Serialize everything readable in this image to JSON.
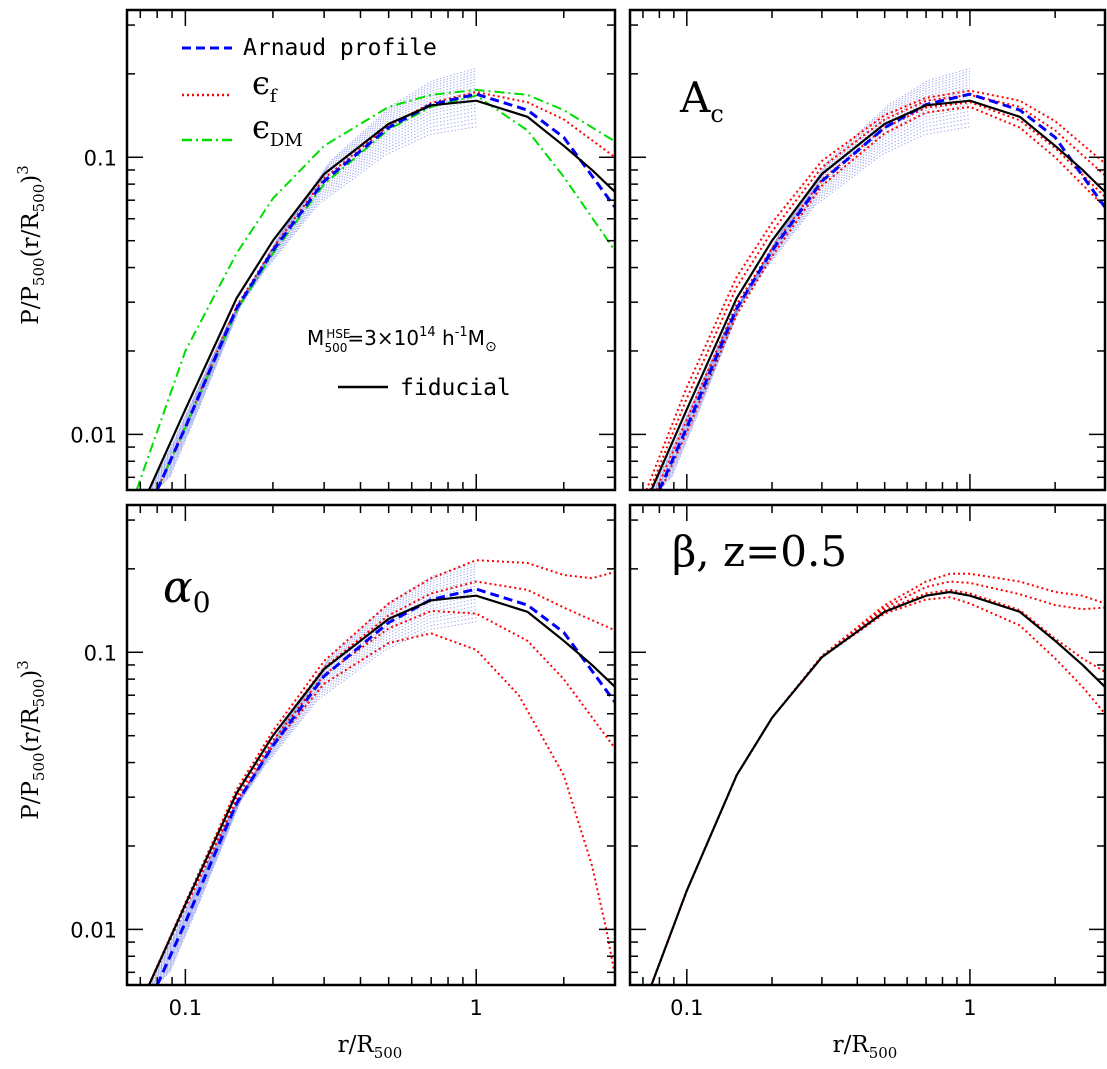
{
  "chart_data": [
    {
      "panel": "top-left",
      "type": "line",
      "xscale": "log",
      "yscale": "log",
      "xlim": [
        0.063,
        3.0
      ],
      "ylim": [
        0.0063,
        0.34
      ],
      "xticklabels": [],
      "yticklabels": [
        "0.1",
        "0.01"
      ],
      "xlabel": "",
      "ylabel": "P/P500(r/R500)3",
      "annotation": "M500HSE=3×1014 h-1M⊙",
      "legend": [
        {
          "label": "Arnaud profile",
          "color": "#0000ff",
          "style": "dashed"
        },
        {
          "label": "εf",
          "color": "#ff0000",
          "style": "dotted"
        },
        {
          "label": "εDM",
          "color": "#00dd00",
          "style": "dashdot"
        },
        {
          "label": "fiducial",
          "color": "#000000",
          "style": "solid"
        }
      ],
      "series": [
        {
          "role": "arnaud",
          "x": [
            0.08,
            0.1,
            0.15,
            0.2,
            0.3,
            0.5,
            0.7,
            1.0,
            1.5,
            2.0,
            3.0
          ],
          "y": [
            0.0063,
            0.0106,
            0.0285,
            0.046,
            0.082,
            0.128,
            0.155,
            0.169,
            0.148,
            0.118,
            0.066
          ]
        },
        {
          "role": "fiducial",
          "x": [
            0.075,
            0.1,
            0.15,
            0.2,
            0.3,
            0.5,
            0.7,
            1.0,
            1.5,
            2.0,
            2.5,
            3.0
          ],
          "y": [
            0.0063,
            0.0123,
            0.031,
            0.05,
            0.087,
            0.132,
            0.154,
            0.16,
            0.14,
            0.11,
            0.09,
            0.075
          ]
        },
        {
          "role": "varied-red",
          "x": [
            0.08,
            0.1,
            0.15,
            0.2,
            0.3,
            0.5,
            0.7,
            1.0,
            1.5,
            2.0,
            3.0
          ],
          "y": [
            0.0063,
            0.0107,
            0.029,
            0.047,
            0.084,
            0.13,
            0.157,
            0.172,
            0.158,
            0.137,
            0.1
          ]
        },
        {
          "role": "varied-green",
          "x": [
            0.068,
            0.1,
            0.15,
            0.2,
            0.3,
            0.5,
            0.7,
            1.0,
            1.5,
            2.0,
            3.0
          ],
          "y": [
            0.0063,
            0.02,
            0.045,
            0.071,
            0.11,
            0.152,
            0.168,
            0.175,
            0.168,
            0.148,
            0.114
          ]
        },
        {
          "role": "varied-green",
          "x": [
            0.08,
            0.1,
            0.15,
            0.2,
            0.3,
            0.5,
            0.7,
            1.0,
            1.5,
            2.0,
            3.0
          ],
          "y": [
            0.0063,
            0.0106,
            0.028,
            0.045,
            0.08,
            0.126,
            0.152,
            0.167,
            0.125,
            0.085,
            0.046
          ]
        }
      ]
    },
    {
      "panel": "top-right",
      "type": "line",
      "xscale": "log",
      "yscale": "log",
      "xlim": [
        0.063,
        3.0
      ],
      "ylim": [
        0.0063,
        0.34
      ],
      "xticklabels": [],
      "yticklabels": [],
      "annotation": "Ac",
      "series": [
        {
          "role": "arnaud",
          "x": [
            0.08,
            0.1,
            0.15,
            0.2,
            0.3,
            0.5,
            0.7,
            1.0,
            1.5,
            2.0,
            3.0
          ],
          "y": [
            0.0063,
            0.0106,
            0.0285,
            0.046,
            0.082,
            0.128,
            0.155,
            0.169,
            0.148,
            0.118,
            0.066
          ]
        },
        {
          "role": "fiducial",
          "x": [
            0.075,
            0.1,
            0.15,
            0.2,
            0.3,
            0.5,
            0.7,
            1.0,
            1.5,
            2.0,
            2.5,
            3.0
          ],
          "y": [
            0.0063,
            0.0123,
            0.031,
            0.05,
            0.087,
            0.132,
            0.154,
            0.16,
            0.14,
            0.11,
            0.09,
            0.075
          ]
        },
        {
          "role": "varied-red",
          "x": [
            0.072,
            0.1,
            0.15,
            0.2,
            0.3,
            0.5,
            0.7,
            1.0,
            1.5,
            2.0,
            3.0
          ],
          "y": [
            0.0063,
            0.0148,
            0.037,
            0.058,
            0.097,
            0.142,
            0.164,
            0.174,
            0.16,
            0.135,
            0.095
          ]
        },
        {
          "role": "varied-red",
          "x": [
            0.078,
            0.1,
            0.15,
            0.2,
            0.3,
            0.5,
            0.7,
            1.0,
            1.5,
            2.0,
            3.0
          ],
          "y": [
            0.0063,
            0.0113,
            0.0295,
            0.047,
            0.083,
            0.128,
            0.151,
            0.158,
            0.136,
            0.108,
            0.072
          ]
        },
        {
          "role": "varied-red",
          "x": [
            0.081,
            0.1,
            0.15,
            0.2,
            0.3,
            0.5,
            0.7,
            1.0,
            1.5,
            2.0,
            3.0
          ],
          "y": [
            0.0063,
            0.0102,
            0.027,
            0.044,
            0.079,
            0.122,
            0.145,
            0.152,
            0.128,
            0.1,
            0.066
          ]
        },
        {
          "role": "varied-red",
          "x": [
            0.074,
            0.1,
            0.15,
            0.2,
            0.3,
            0.5,
            0.7,
            1.0,
            1.5,
            2.0,
            3.0
          ],
          "y": [
            0.0063,
            0.0135,
            0.034,
            0.054,
            0.092,
            0.137,
            0.16,
            0.168,
            0.152,
            0.125,
            0.086
          ]
        }
      ]
    },
    {
      "panel": "bottom-left",
      "type": "line",
      "xscale": "log",
      "yscale": "log",
      "xlim": [
        0.063,
        3.0
      ],
      "ylim": [
        0.0063,
        0.34
      ],
      "xticklabels": [
        "0.1",
        "1"
      ],
      "yticklabels": [
        "0.1",
        "0.01"
      ],
      "xlabel": "r/R500",
      "ylabel": "P/P500(r/R500)3",
      "annotation": "α0",
      "series": [
        {
          "role": "arnaud",
          "x": [
            0.08,
            0.1,
            0.15,
            0.2,
            0.3,
            0.5,
            0.7,
            1.0,
            1.5,
            2.0,
            3.0
          ],
          "y": [
            0.0063,
            0.0106,
            0.0285,
            0.046,
            0.082,
            0.128,
            0.155,
            0.169,
            0.148,
            0.118,
            0.066
          ]
        },
        {
          "role": "fiducial",
          "x": [
            0.075,
            0.1,
            0.15,
            0.2,
            0.3,
            0.5,
            0.7,
            1.0,
            1.5,
            2.0,
            2.5,
            3.0
          ],
          "y": [
            0.0063,
            0.0123,
            0.031,
            0.05,
            0.087,
            0.132,
            0.154,
            0.16,
            0.14,
            0.11,
            0.09,
            0.075
          ]
        },
        {
          "role": "varied-red",
          "x": [
            0.075,
            0.1,
            0.15,
            0.2,
            0.3,
            0.5,
            0.7,
            1.0,
            1.5,
            2.0,
            2.5,
            3.0
          ],
          "y": [
            0.0063,
            0.0125,
            0.032,
            0.052,
            0.093,
            0.15,
            0.185,
            0.215,
            0.21,
            0.19,
            0.185,
            0.195
          ]
        },
        {
          "role": "varied-red",
          "x": [
            0.075,
            0.1,
            0.15,
            0.2,
            0.3,
            0.5,
            0.7,
            1.0,
            1.5,
            2.0,
            3.0
          ],
          "y": [
            0.0063,
            0.0123,
            0.031,
            0.05,
            0.088,
            0.136,
            0.163,
            0.18,
            0.168,
            0.145,
            0.12
          ]
        },
        {
          "role": "varied-red",
          "x": [
            0.075,
            0.1,
            0.15,
            0.2,
            0.3,
            0.5,
            0.7,
            1.0,
            1.5,
            2.0,
            3.0
          ],
          "y": [
            0.0063,
            0.0121,
            0.03,
            0.048,
            0.083,
            0.122,
            0.141,
            0.138,
            0.11,
            0.08,
            0.045
          ]
        },
        {
          "role": "varied-red",
          "x": [
            0.075,
            0.1,
            0.15,
            0.2,
            0.3,
            0.5,
            0.7,
            1.0,
            1.4,
            2.0,
            2.5,
            2.8,
            3.0
          ],
          "y": [
            0.0063,
            0.012,
            0.029,
            0.046,
            0.077,
            0.108,
            0.117,
            0.102,
            0.07,
            0.036,
            0.017,
            0.01,
            0.0068
          ]
        }
      ]
    },
    {
      "panel": "bottom-right",
      "type": "line",
      "xscale": "log",
      "yscale": "log",
      "xlim": [
        0.063,
        3.0
      ],
      "ylim": [
        0.0063,
        0.34
      ],
      "xticklabels": [
        "0.1",
        "1"
      ],
      "yticklabels": [],
      "xlabel": "r/R500",
      "annotation": "β, z=0.5",
      "series": [
        {
          "role": "fiducial",
          "x": [
            0.075,
            0.1,
            0.15,
            0.2,
            0.3,
            0.5,
            0.7,
            0.85,
            1.0,
            1.5,
            2.0,
            2.5,
            3.0
          ],
          "y": [
            0.0063,
            0.0138,
            0.036,
            0.058,
            0.096,
            0.14,
            0.16,
            0.165,
            0.16,
            0.14,
            0.11,
            0.09,
            0.075
          ]
        },
        {
          "role": "varied-red",
          "x": [
            0.075,
            0.1,
            0.15,
            0.2,
            0.3,
            0.5,
            0.7,
            0.85,
            1.0,
            1.5,
            2.0,
            2.5,
            3.0
          ],
          "y": [
            0.0063,
            0.0138,
            0.036,
            0.058,
            0.097,
            0.145,
            0.172,
            0.18,
            0.178,
            0.162,
            0.148,
            0.143,
            0.145
          ]
        },
        {
          "role": "varied-red",
          "x": [
            0.075,
            0.1,
            0.15,
            0.2,
            0.3,
            0.5,
            0.7,
            0.85,
            1.0,
            1.5,
            2.0,
            2.5,
            3.0
          ],
          "y": [
            0.0063,
            0.0138,
            0.036,
            0.058,
            0.096,
            0.142,
            0.163,
            0.168,
            0.163,
            0.142,
            0.112,
            0.095,
            0.085
          ]
        },
        {
          "role": "varied-red",
          "x": [
            0.075,
            0.1,
            0.15,
            0.2,
            0.3,
            0.5,
            0.7,
            0.85,
            1.0,
            1.5,
            2.0,
            2.5,
            3.0
          ],
          "y": [
            0.0063,
            0.0138,
            0.036,
            0.058,
            0.096,
            0.138,
            0.155,
            0.158,
            0.15,
            0.125,
            0.095,
            0.075,
            0.06
          ]
        },
        {
          "role": "varied-red",
          "x": [
            0.075,
            0.1,
            0.15,
            0.2,
            0.3,
            0.5,
            0.7,
            0.85,
            1.0,
            1.5,
            2.0,
            2.5,
            3.0
          ],
          "y": [
            0.0063,
            0.0138,
            0.036,
            0.058,
            0.097,
            0.148,
            0.18,
            0.192,
            0.192,
            0.18,
            0.165,
            0.16,
            0.15
          ]
        }
      ]
    }
  ],
  "styles": {
    "arnaud": "#0000ff",
    "fiducial": "#000000",
    "varied-red": "#ff0000",
    "varied-green": "#00dd00",
    "band": "#6f7fe8"
  }
}
